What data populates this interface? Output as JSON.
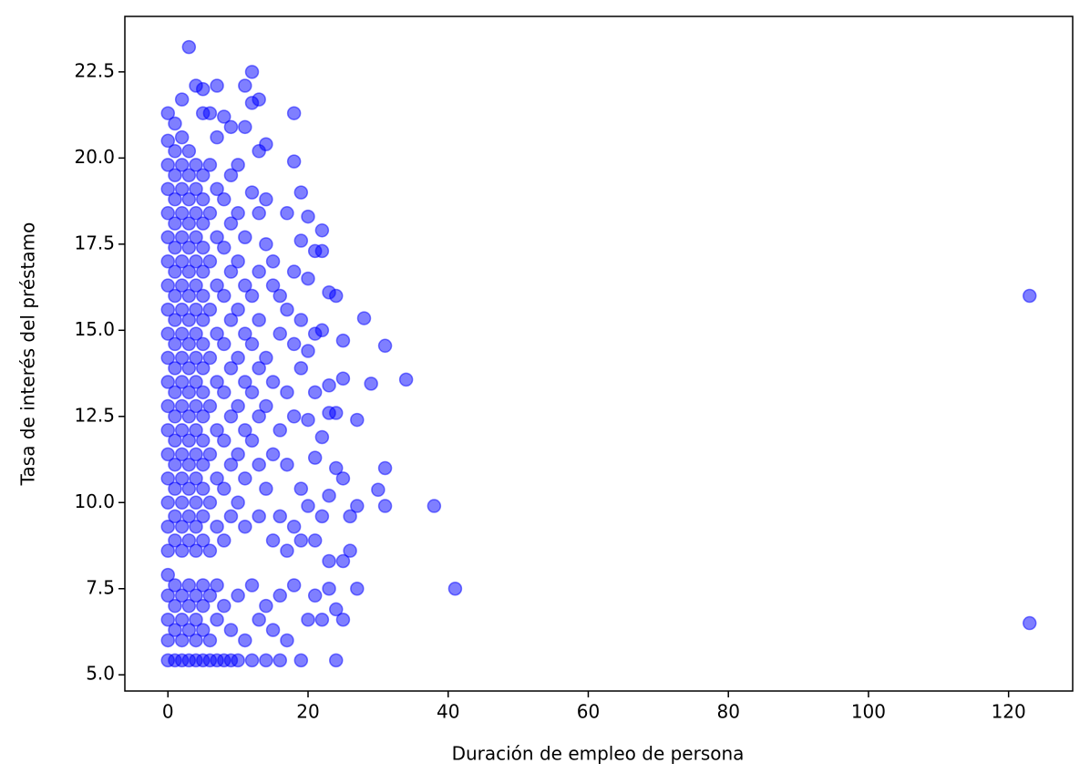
{
  "chart_data": {
    "type": "scatter",
    "x_label": "Duración de empleo de persona",
    "y_label": "Tasa de interés del préstamo",
    "color": "#0000ff",
    "alpha": 0.5,
    "xlim": [
      -6.15,
      129.15
    ],
    "xticks": [
      0,
      20,
      40,
      60,
      80,
      100,
      120
    ],
    "ylim": [
      4.53,
      24.11
    ],
    "yticks": [
      {
        "value": 5,
        "label": "5.0"
      },
      7.5,
      {
        "value": 10,
        "label": "10.0"
      },
      12.5,
      {
        "value": 15,
        "label": "15.0"
      },
      17.5,
      {
        "value": 20,
        "label": "20.0"
      },
      22.5
    ],
    "x": [
      0,
      0,
      0,
      0,
      0,
      0,
      0,
      0,
      0,
      0,
      0,
      0,
      0,
      0,
      0,
      0,
      0,
      0,
      0,
      0,
      0,
      0,
      0,
      0,
      1,
      1,
      1,
      1,
      1,
      1,
      1,
      1,
      1,
      1,
      1,
      1,
      1,
      1,
      1,
      1,
      1,
      1,
      1,
      1,
      1,
      1,
      2,
      2,
      2,
      2,
      2,
      2,
      2,
      2,
      2,
      2,
      2,
      2,
      2,
      2,
      2,
      2,
      2,
      2,
      2,
      2,
      2,
      2,
      2,
      3,
      3,
      3,
      3,
      3,
      3,
      3,
      3,
      3,
      3,
      3,
      3,
      3,
      3,
      3,
      3,
      3,
      3,
      3,
      3,
      3,
      3,
      4,
      4,
      4,
      4,
      4,
      4,
      4,
      4,
      4,
      4,
      4,
      4,
      4,
      4,
      4,
      4,
      4,
      4,
      4,
      4,
      4,
      4,
      5,
      5,
      5,
      5,
      5,
      5,
      5,
      5,
      5,
      5,
      5,
      5,
      5,
      5,
      5,
      5,
      5,
      5,
      5,
      5,
      5,
      5,
      6,
      6,
      6,
      6,
      6,
      6,
      6,
      6,
      6,
      6,
      6,
      6,
      6,
      7,
      7,
      7,
      7,
      7,
      7,
      7,
      7,
      7,
      7,
      7,
      7,
      7,
      8,
      8,
      8,
      8,
      8,
      8,
      8,
      8,
      8,
      8,
      8,
      9,
      9,
      9,
      9,
      9,
      9,
      9,
      9,
      9,
      9,
      9,
      10,
      10,
      10,
      10,
      10,
      10,
      10,
      10,
      10,
      10,
      11,
      11,
      11,
      11,
      11,
      11,
      11,
      11,
      11,
      11,
      12,
      12,
      12,
      12,
      12,
      12,
      12,
      12,
      12,
      13,
      13,
      13,
      13,
      13,
      13,
      13,
      13,
      13,
      13,
      14,
      14,
      14,
      14,
      14,
      14,
      14,
      14,
      15,
      15,
      15,
      15,
      15,
      15,
      16,
      16,
      16,
      16,
      16,
      16,
      17,
      17,
      17,
      17,
      17,
      17,
      18,
      18,
      18,
      18,
      18,
      18,
      18,
      19,
      19,
      19,
      19,
      19,
      19,
      19,
      20,
      20,
      20,
      20,
      20,
      20,
      21,
      21,
      21,
      21,
      21,
      21,
      22,
      22,
      22,
      22,
      22,
      22,
      23,
      23,
      23,
      23,
      23,
      23,
      24,
      24,
      24,
      24,
      24,
      25,
      25,
      25,
      25,
      25,
      26,
      26,
      27,
      27,
      27,
      28,
      29,
      30,
      31,
      31,
      31,
      34,
      38,
      41,
      123,
      123
    ],
    "values": [
      5.42,
      6.0,
      6.6,
      7.3,
      7.9,
      8.6,
      9.3,
      10.0,
      10.7,
      11.4,
      12.1,
      12.8,
      13.5,
      14.2,
      14.9,
      15.6,
      16.3,
      17.0,
      17.7,
      18.4,
      19.1,
      19.8,
      20.5,
      21.3,
      5.42,
      6.3,
      7.0,
      7.6,
      8.9,
      9.6,
      10.4,
      11.1,
      11.8,
      12.5,
      13.2,
      13.9,
      14.6,
      15.3,
      16.0,
      16.7,
      17.4,
      18.1,
      18.8,
      19.5,
      20.2,
      21.0,
      5.42,
      6.0,
      6.6,
      7.3,
      8.6,
      9.3,
      10.0,
      10.7,
      11.4,
      12.1,
      12.8,
      13.5,
      14.2,
      14.9,
      15.6,
      16.3,
      17.0,
      17.7,
      18.4,
      19.1,
      19.8,
      20.6,
      21.7,
      5.42,
      6.3,
      7.0,
      7.6,
      8.9,
      9.6,
      10.4,
      11.1,
      11.8,
      12.5,
      13.2,
      13.9,
      14.6,
      15.3,
      16.0,
      16.7,
      17.4,
      18.1,
      18.8,
      19.5,
      20.2,
      23.22,
      5.42,
      6.0,
      6.6,
      7.3,
      8.6,
      9.3,
      10.0,
      10.7,
      11.4,
      12.1,
      12.8,
      13.5,
      14.2,
      14.9,
      15.6,
      16.3,
      17.0,
      17.7,
      18.4,
      19.1,
      19.8,
      22.1,
      5.42,
      6.3,
      7.0,
      7.6,
      8.9,
      9.6,
      10.4,
      11.1,
      11.8,
      12.5,
      13.2,
      13.9,
      14.6,
      15.3,
      16.0,
      16.7,
      17.4,
      18.1,
      18.8,
      19.5,
      21.3,
      22.0,
      5.42,
      6.0,
      7.3,
      8.6,
      10.0,
      11.4,
      12.8,
      14.2,
      15.6,
      17.0,
      18.4,
      19.8,
      21.3,
      5.42,
      6.6,
      7.6,
      9.3,
      10.7,
      12.1,
      13.5,
      14.9,
      16.3,
      17.7,
      19.1,
      20.6,
      22.1,
      5.42,
      7.0,
      8.9,
      10.4,
      11.8,
      13.2,
      14.6,
      16.0,
      17.4,
      18.8,
      21.2,
      5.42,
      6.3,
      9.6,
      11.1,
      12.5,
      13.9,
      15.3,
      16.7,
      18.1,
      19.5,
      20.9,
      5.42,
      7.3,
      10.0,
      11.4,
      12.8,
      14.2,
      15.6,
      17.0,
      18.4,
      19.8,
      6.0,
      9.3,
      10.7,
      12.1,
      13.5,
      14.9,
      16.3,
      17.7,
      20.9,
      22.1,
      5.42,
      7.6,
      11.8,
      13.2,
      14.6,
      16.0,
      19.0,
      21.6,
      22.5,
      6.6,
      9.6,
      11.1,
      12.5,
      13.9,
      15.3,
      16.7,
      18.4,
      20.2,
      21.7,
      5.42,
      7.0,
      10.4,
      12.8,
      14.2,
      17.5,
      18.8,
      20.4,
      6.3,
      8.9,
      11.4,
      13.5,
      16.3,
      17.0,
      5.42,
      7.3,
      9.6,
      12.1,
      14.9,
      16.0,
      6.0,
      8.6,
      11.1,
      13.2,
      15.6,
      18.4,
      7.6,
      9.3,
      12.5,
      14.6,
      16.7,
      19.9,
      21.3,
      5.42,
      8.9,
      10.4,
      13.9,
      15.3,
      17.6,
      19.0,
      6.6,
      9.9,
      12.4,
      14.4,
      16.5,
      18.3,
      7.3,
      8.9,
      11.3,
      13.2,
      14.9,
      17.3,
      6.6,
      9.6,
      11.9,
      15.0,
      17.3,
      17.9,
      7.5,
      8.3,
      10.2,
      12.6,
      13.4,
      16.1,
      5.42,
      6.9,
      11.0,
      12.6,
      16.0,
      6.6,
      8.3,
      10.7,
      13.6,
      14.7,
      8.6,
      9.6,
      7.5,
      9.9,
      12.4,
      15.35,
      13.45,
      10.37,
      9.9,
      11.0,
      14.55,
      13.57,
      9.9,
      7.5,
      16.0,
      6.5
    ]
  }
}
